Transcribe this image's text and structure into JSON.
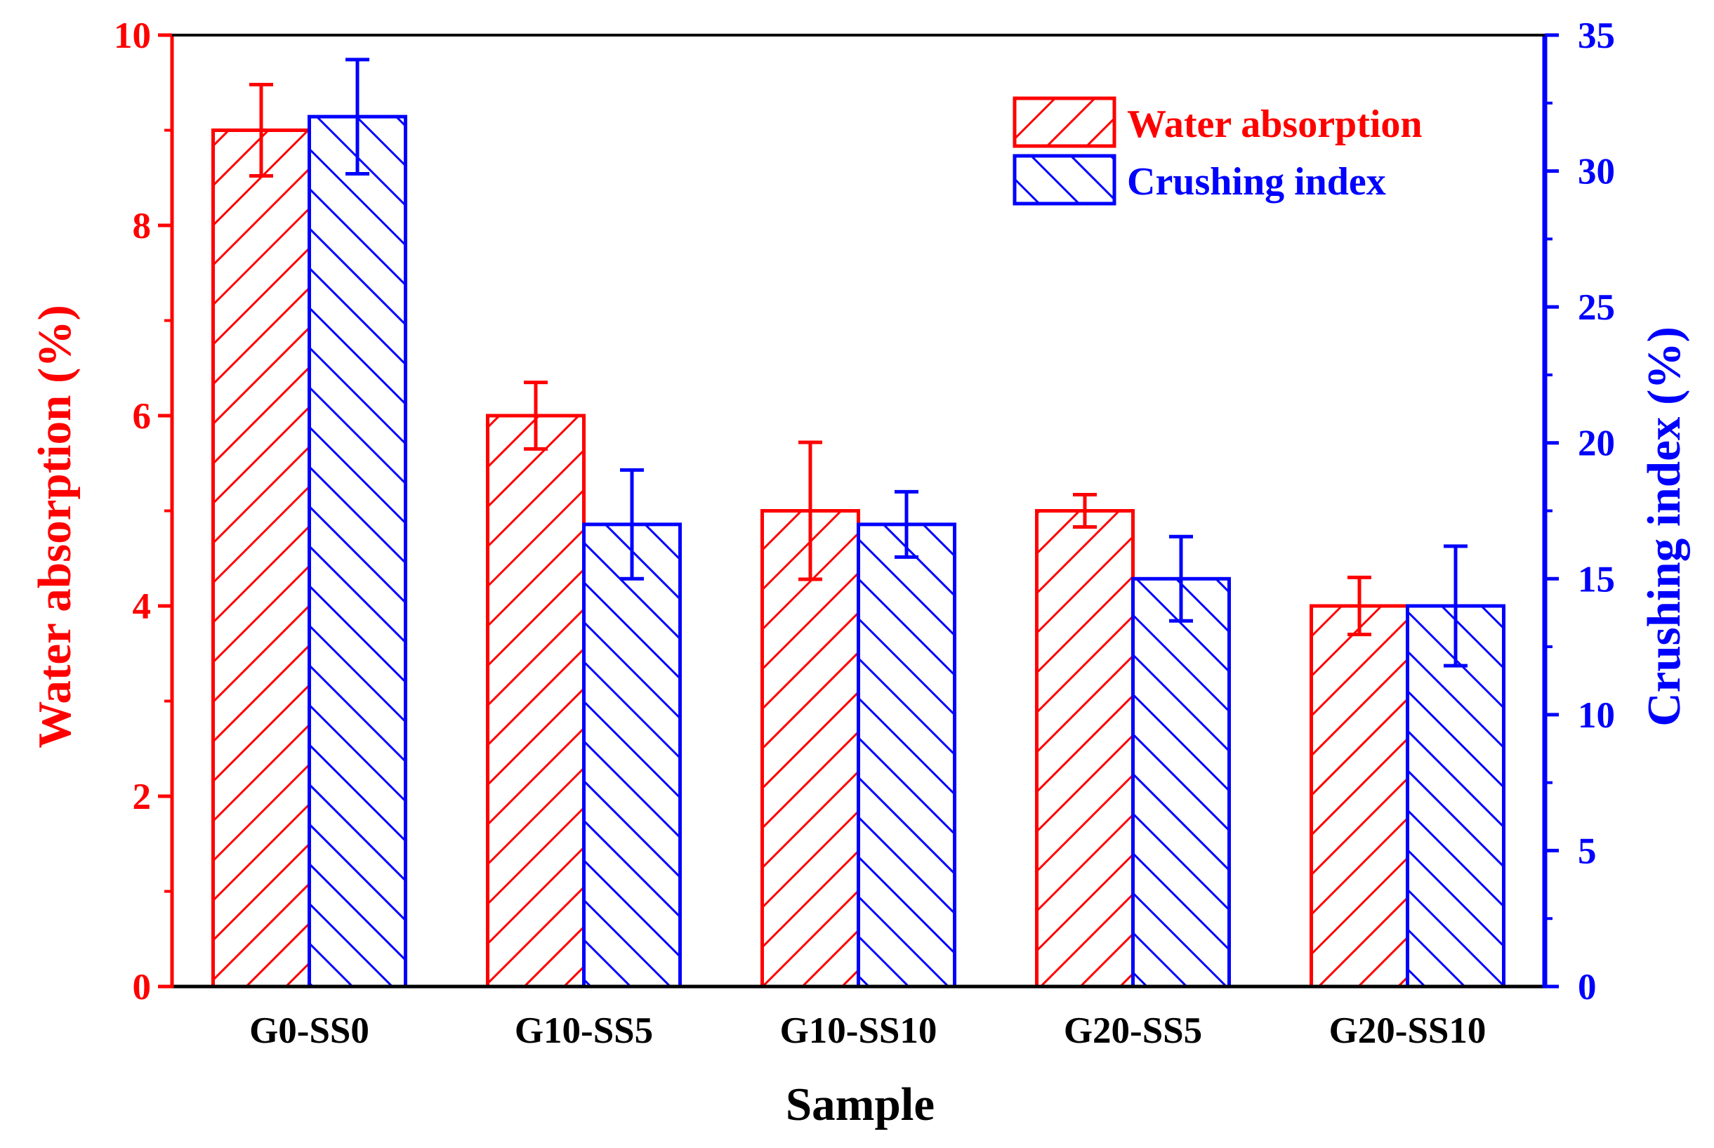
{
  "chart_data": {
    "type": "bar",
    "title": "",
    "xlabel": "Sample",
    "categories": [
      "G0-SS0",
      "G10-SS5",
      "G10-SS10",
      "G20-SS5",
      "G20-SS10"
    ],
    "series": [
      {
        "name": "Water absorption",
        "axis": "left",
        "color": "#ff0000",
        "hatch": "forward-diagonal",
        "values": [
          9.0,
          6.0,
          5.0,
          5.0,
          4.0
        ],
        "errors": [
          0.48,
          0.35,
          0.72,
          0.17,
          0.3
        ]
      },
      {
        "name": "Crushing index",
        "axis": "right",
        "color": "#0000ff",
        "hatch": "back-diagonal",
        "values": [
          32.0,
          17.0,
          17.0,
          15.0,
          14.0
        ],
        "errors": [
          2.1,
          2.0,
          1.2,
          1.55,
          2.2
        ]
      }
    ],
    "y_left": {
      "label": "Water absorption (%)",
      "ylim": [
        0,
        10
      ],
      "ticks": [
        "0",
        "2",
        "4",
        "6",
        "8",
        "10"
      ],
      "color": "#ff0000"
    },
    "y_right": {
      "label": "Crushing index (%)",
      "ylim": [
        0,
        35
      ],
      "ticks": [
        "0",
        "5",
        "10",
        "15",
        "20",
        "25",
        "30",
        "35"
      ],
      "color": "#0000ff"
    },
    "legend_position": "top-right",
    "grid": false
  }
}
